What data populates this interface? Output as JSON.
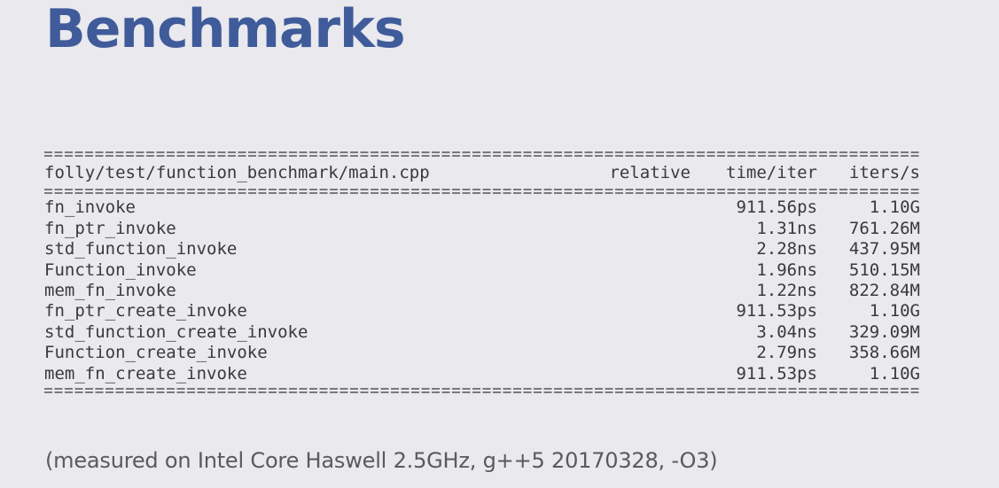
{
  "slide": {
    "title": "Benchmarks",
    "footnote": "(measured on Intel Core Haswell 2.5GHz, g++5 20170328, -O3)"
  },
  "benchmark": {
    "file": "folly/test/function_benchmark/main.cpp",
    "columns": {
      "relative": "relative",
      "time": "time/iter",
      "iters": "iters/s"
    },
    "rows": [
      {
        "name": "fn_invoke",
        "relative": "",
        "time": "911.56ps",
        "iters": "1.10G"
      },
      {
        "name": "fn_ptr_invoke",
        "relative": "",
        "time": "1.31ns",
        "iters": "761.26M"
      },
      {
        "name": "std_function_invoke",
        "relative": "",
        "time": "2.28ns",
        "iters": "437.95M"
      },
      {
        "name": "Function_invoke",
        "relative": "",
        "time": "1.96ns",
        "iters": "510.15M"
      },
      {
        "name": "mem_fn_invoke",
        "relative": "",
        "time": "1.22ns",
        "iters": "822.84M"
      },
      {
        "name": "fn_ptr_create_invoke",
        "relative": "",
        "time": "911.53ps",
        "iters": "1.10G"
      },
      {
        "name": "std_function_create_invoke",
        "relative": "",
        "time": "3.04ns",
        "iters": "329.09M"
      },
      {
        "name": "Function_create_invoke",
        "relative": "",
        "time": "2.79ns",
        "iters": "358.66M"
      },
      {
        "name": "mem_fn_create_invoke",
        "relative": "",
        "time": "911.53ps",
        "iters": "1.10G"
      }
    ]
  },
  "colors": {
    "background": "#e9e9ee",
    "title": "#3f5b9a",
    "text": "#3a3a3a",
    "footnote": "#5a5a5a"
  }
}
